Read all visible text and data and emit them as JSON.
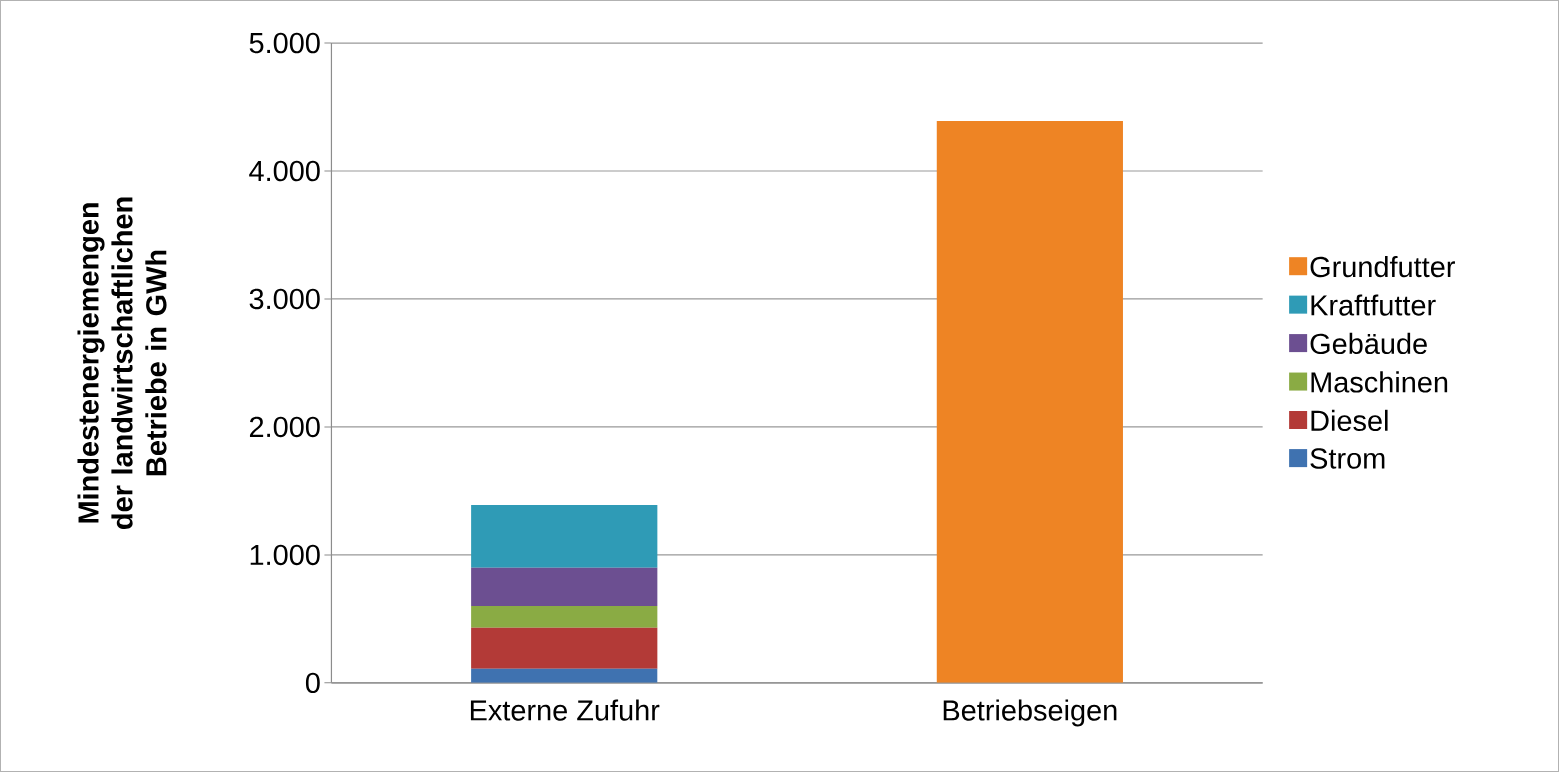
{
  "chart_data": {
    "type": "bar",
    "stacked": true,
    "ylabel": "Mindestenergiemengen der landwirtschaftlichen Betriebe in GWh",
    "categories": [
      "Externe Zufuhr",
      "Betriebseigen"
    ],
    "series": [
      {
        "name": "Strom",
        "color": "#3f72b0",
        "values": [
          110,
          null
        ]
      },
      {
        "name": "Diesel",
        "color": "#b33a37",
        "values": [
          320,
          null
        ]
      },
      {
        "name": "Maschinen",
        "color": "#8aab44",
        "values": [
          170,
          null
        ]
      },
      {
        "name": "Gebäude",
        "color": "#6c4f91",
        "values": [
          300,
          null
        ]
      },
      {
        "name": "Kraftfutter",
        "color": "#2f9bb6",
        "values": [
          490,
          null
        ]
      },
      {
        "name": "Grundfutter",
        "color": "#ee8424",
        "values": [
          null,
          4390
        ]
      }
    ],
    "ylim": [
      0,
      5000
    ],
    "yticks": [
      {
        "value": 0,
        "label": "0"
      },
      {
        "value": 1000,
        "label": "1.000"
      },
      {
        "value": 2000,
        "label": "2.000"
      },
      {
        "value": 3000,
        "label": "3.000"
      },
      {
        "value": 4000,
        "label": "4.000"
      },
      {
        "value": 5000,
        "label": "5.000"
      }
    ],
    "grid": "y",
    "legend": "right"
  }
}
